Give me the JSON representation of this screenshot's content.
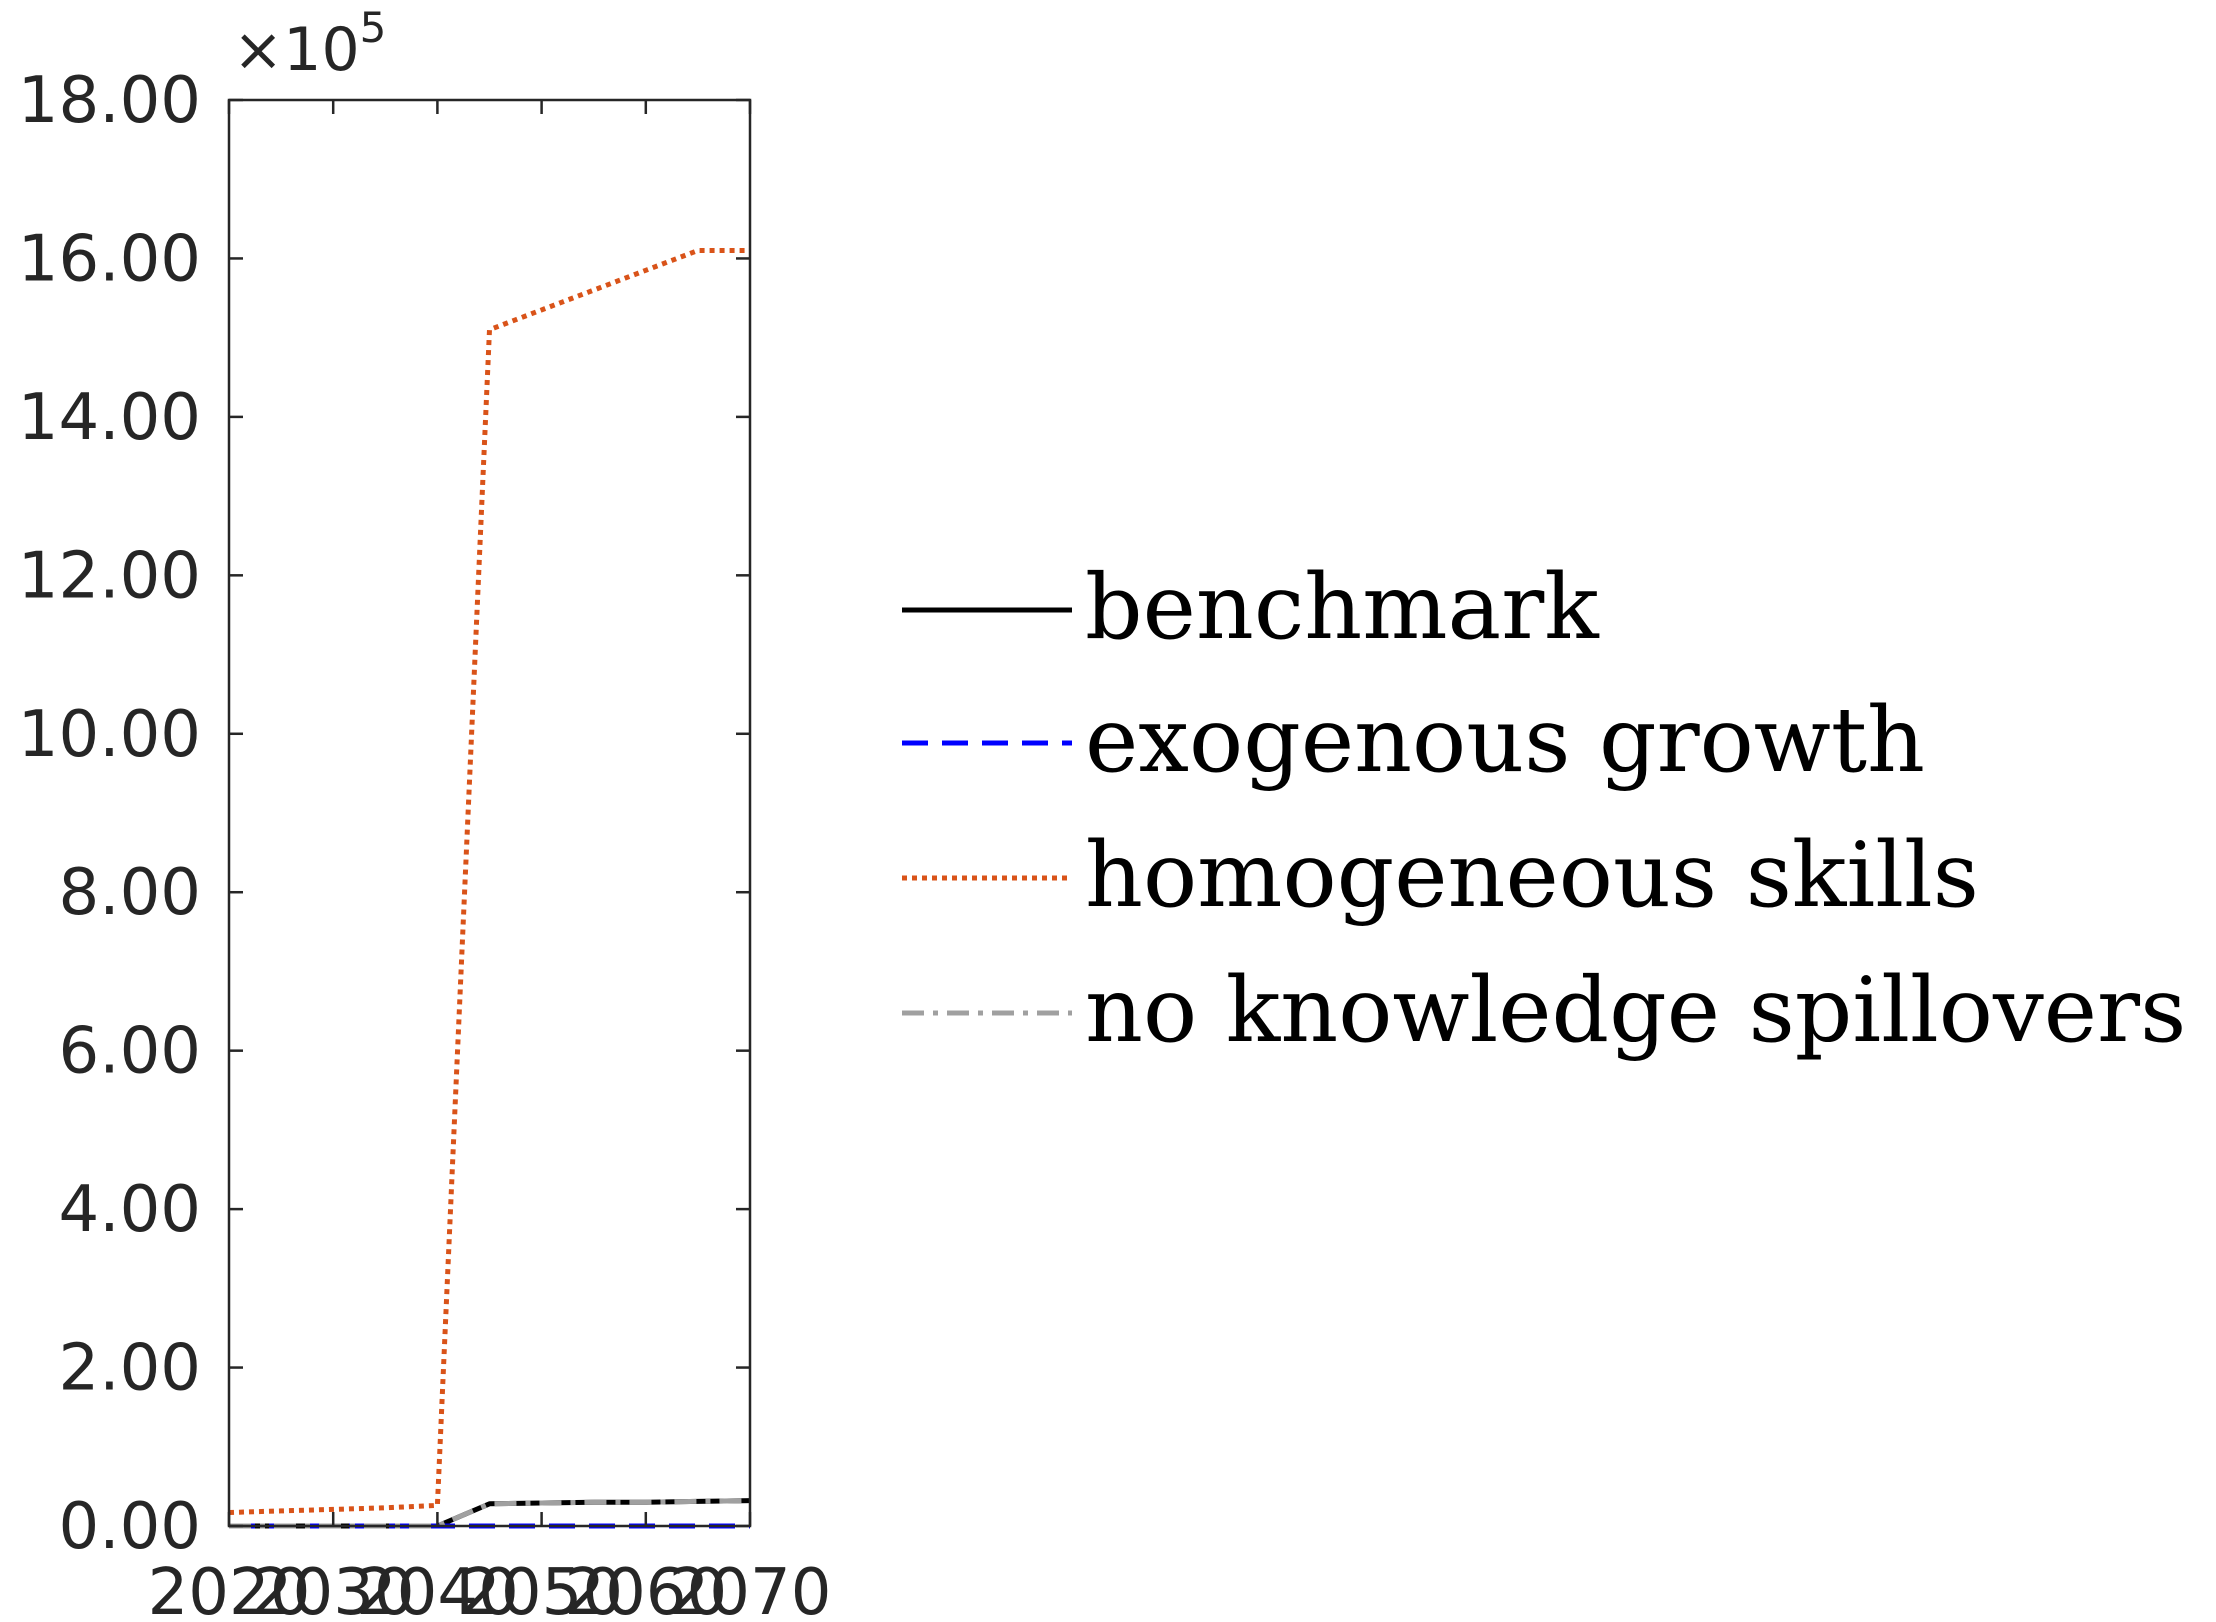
{
  "chart_data": {
    "type": "line",
    "x": [
      2020,
      2025,
      2030,
      2035,
      2040,
      2045,
      2050,
      2055,
      2060,
      2065,
      2070
    ],
    "xlim": [
      2020,
      2070
    ],
    "ylim": [
      0,
      18
    ],
    "y_scale_note": "×10^5",
    "exponent_base": "×10",
    "exponent_power": "5",
    "x_tick_labels": [
      "2020",
      "2030",
      "2040",
      "2050",
      "2060",
      "2070"
    ],
    "y_tick_labels": [
      "0.00",
      "2.00",
      "4.00",
      "6.00",
      "8.00",
      "10.00",
      "12.00",
      "14.00",
      "16.00",
      "18.00"
    ],
    "grid": false,
    "legend_position": "right, outside plot",
    "series": [
      {
        "name": "benchmark",
        "color": "#000000",
        "dash": "solid",
        "values": [
          0.0,
          0.0,
          0.0,
          0.0,
          0.0,
          0.28,
          0.29,
          0.3,
          0.3,
          0.31,
          0.32
        ]
      },
      {
        "name": "exogenous growth",
        "color": "#0000ff",
        "dash": "dashed",
        "values": [
          0.0,
          0.0,
          0.0,
          0.0,
          0.0,
          0.0,
          0.0,
          0.0,
          0.0,
          0.0,
          0.0
        ]
      },
      {
        "name": "homogeneous skills",
        "color": "#d95319",
        "dash": "dotted",
        "values": [
          0.17,
          0.19,
          0.21,
          0.23,
          0.26,
          15.1,
          15.35,
          15.6,
          15.85,
          16.1,
          16.1
        ]
      },
      {
        "name": "no knowledge spillovers",
        "color": "#a0a0a0",
        "dash": "dashdot",
        "values": [
          0.0,
          0.0,
          0.0,
          0.0,
          0.0,
          0.28,
          0.29,
          0.3,
          0.3,
          0.31,
          0.32
        ]
      }
    ]
  }
}
